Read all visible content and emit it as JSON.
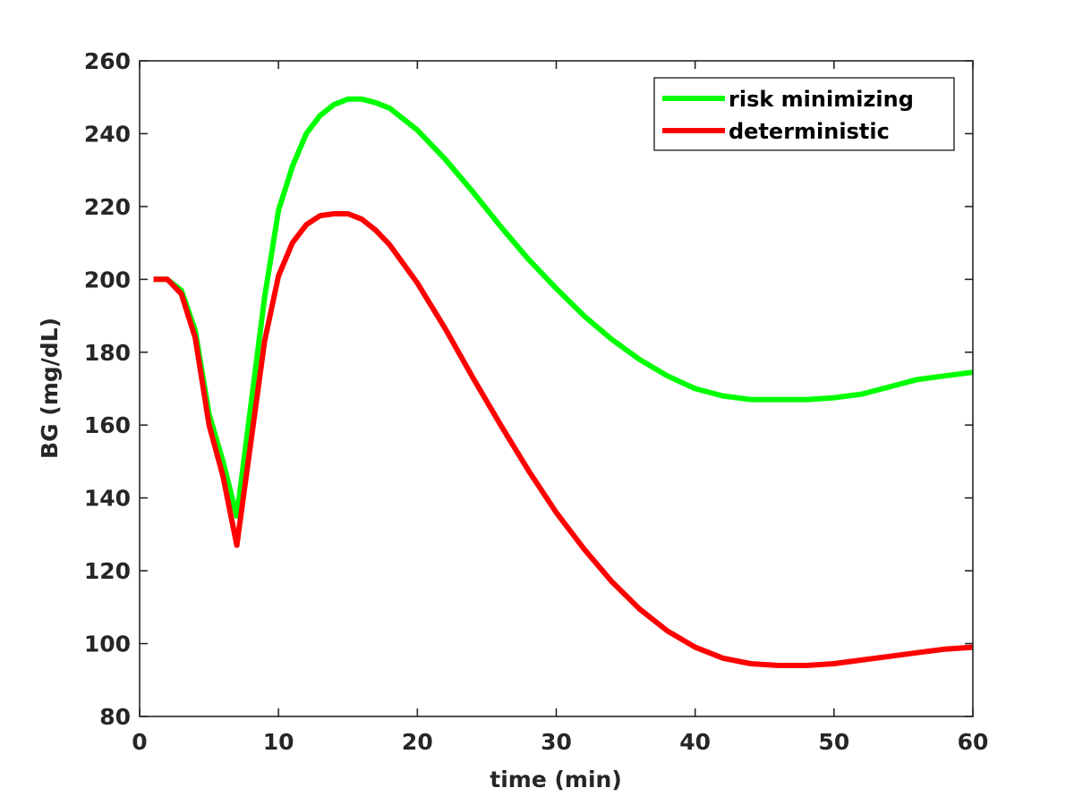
{
  "chart_data": {
    "type": "line",
    "xlabel": "time (min)",
    "ylabel": "BG (mg/dL)",
    "xlim": [
      0,
      60
    ],
    "ylim": [
      80,
      260
    ],
    "x_ticks": [
      0,
      10,
      20,
      30,
      40,
      50,
      60
    ],
    "y_ticks": [
      80,
      100,
      120,
      140,
      160,
      180,
      200,
      220,
      240,
      260
    ],
    "grid": false,
    "legend_position": "top-right",
    "series": [
      {
        "name": "risk minimizing",
        "color": "#00ff00",
        "x": [
          1,
          2,
          3,
          4,
          5,
          6,
          7,
          8,
          9,
          10,
          11,
          12,
          13,
          14,
          15,
          16,
          17,
          18,
          20,
          22,
          24,
          26,
          28,
          30,
          32,
          34,
          36,
          38,
          40,
          42,
          44,
          46,
          48,
          50,
          52,
          54,
          56,
          58,
          60
        ],
        "values": [
          200,
          200,
          197,
          186,
          163,
          150,
          135,
          165,
          195,
          219,
          231,
          240,
          245,
          248,
          249.5,
          249.5,
          248.5,
          247,
          241,
          233,
          224,
          214.5,
          205.5,
          197.5,
          190,
          183.5,
          178,
          173.5,
          170,
          168,
          167,
          167,
          167,
          167.5,
          168.5,
          170.5,
          172.5,
          173.5,
          174.5
        ]
      },
      {
        "name": "deterministic",
        "color": "#ff0000",
        "x": [
          1,
          2,
          3,
          4,
          5,
          6,
          7,
          8,
          9,
          10,
          11,
          12,
          13,
          14,
          15,
          16,
          17,
          18,
          20,
          22,
          24,
          26,
          28,
          30,
          32,
          34,
          36,
          38,
          40,
          42,
          44,
          46,
          48,
          50,
          52,
          54,
          56,
          58,
          60
        ],
        "values": [
          200,
          200,
          196,
          184,
          160,
          146,
          127,
          155,
          183,
          201,
          210,
          215,
          217.5,
          218,
          218,
          216.5,
          213.5,
          209.5,
          199,
          186.5,
          173,
          160,
          147.5,
          136,
          126,
          117,
          109.5,
          103.5,
          99,
          96,
          94.5,
          94,
          94,
          94.5,
          95.5,
          96.5,
          97.5,
          98.5,
          99
        ]
      }
    ]
  }
}
